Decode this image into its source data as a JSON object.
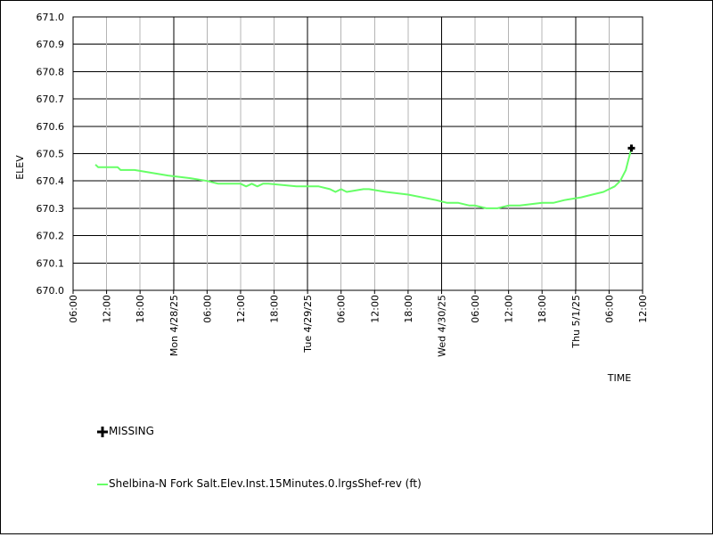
{
  "chart_data": {
    "type": "line",
    "xlabel": "TIME",
    "ylabel": "ELEV",
    "ylim": [
      670.0,
      671.0
    ],
    "y_ticks": [
      "670.0",
      "670.1",
      "670.2",
      "670.3",
      "670.4",
      "670.5",
      "670.6",
      "670.7",
      "670.8",
      "670.9",
      "671.0"
    ],
    "xlim": [
      "2025-04-27 06:00",
      "2025-05-01 12:00"
    ],
    "x_ticks": [
      "06:00",
      "12:00",
      "18:00",
      "Mon 4/28/25",
      "06:00",
      "12:00",
      "18:00",
      "Tue 4/29/25",
      "06:00",
      "12:00",
      "18:00",
      "Wed 4/30/25",
      "06:00",
      "12:00",
      "18:00",
      "Thu 5/1/25",
      "06:00",
      "12:00"
    ],
    "day_lines": [
      "Mon 4/28/25",
      "Tue 4/29/25",
      "Wed 4/30/25",
      "Thu 5/1/25"
    ],
    "grid": true,
    "series": [
      {
        "name": "Shelbina-N Fork Salt.Elev.Inst.15Minutes.0.lrgsShef-rev (ft)",
        "color": "#66ff66",
        "x": [
          "2025-04-27 10:00",
          "2025-04-27 10:30",
          "2025-04-27 14:00",
          "2025-04-27 14:30",
          "2025-04-27 17:00",
          "2025-04-27 20:00",
          "2025-04-27 23:00",
          "2025-04-28 03:00",
          "2025-04-28 06:00",
          "2025-04-28 08:00",
          "2025-04-28 12:00",
          "2025-04-28 13:00",
          "2025-04-28 14:00",
          "2025-04-28 15:00",
          "2025-04-28 16:00",
          "2025-04-28 17:00",
          "2025-04-28 22:00",
          "2025-04-29 02:00",
          "2025-04-29 04:00",
          "2025-04-29 05:00",
          "2025-04-29 06:00",
          "2025-04-29 07:00",
          "2025-04-29 10:00",
          "2025-04-29 11:00",
          "2025-04-29 14:00",
          "2025-04-29 18:00",
          "2025-04-29 23:00",
          "2025-04-30 01:00",
          "2025-04-30 03:00",
          "2025-04-30 05:00",
          "2025-04-30 06:00",
          "2025-04-30 08:00",
          "2025-04-30 10:00",
          "2025-04-30 12:00",
          "2025-04-30 14:00",
          "2025-04-30 18:00",
          "2025-04-30 20:00",
          "2025-04-30 22:00",
          "2025-05-01 01:00",
          "2025-05-01 03:00",
          "2025-05-01 05:00",
          "2025-05-01 06:00",
          "2025-05-01 07:00",
          "2025-05-01 08:00",
          "2025-05-01 09:00",
          "2025-05-01 09:30",
          "2025-05-01 10:00"
        ],
        "values": [
          670.46,
          670.45,
          670.45,
          670.44,
          670.44,
          670.43,
          670.42,
          670.41,
          670.4,
          670.39,
          670.39,
          670.38,
          670.39,
          670.38,
          670.39,
          670.39,
          670.38,
          670.38,
          670.37,
          670.36,
          670.37,
          670.36,
          670.37,
          670.37,
          670.36,
          670.35,
          670.33,
          670.32,
          670.32,
          670.31,
          670.31,
          670.3,
          670.3,
          670.31,
          670.31,
          670.32,
          670.32,
          670.33,
          670.34,
          670.35,
          670.36,
          670.37,
          670.38,
          670.4,
          670.44,
          670.48,
          670.52
        ]
      }
    ],
    "missing": {
      "label": "MISSING",
      "points": [
        {
          "x": "2025-05-01 10:00",
          "y": 670.52
        }
      ]
    }
  }
}
